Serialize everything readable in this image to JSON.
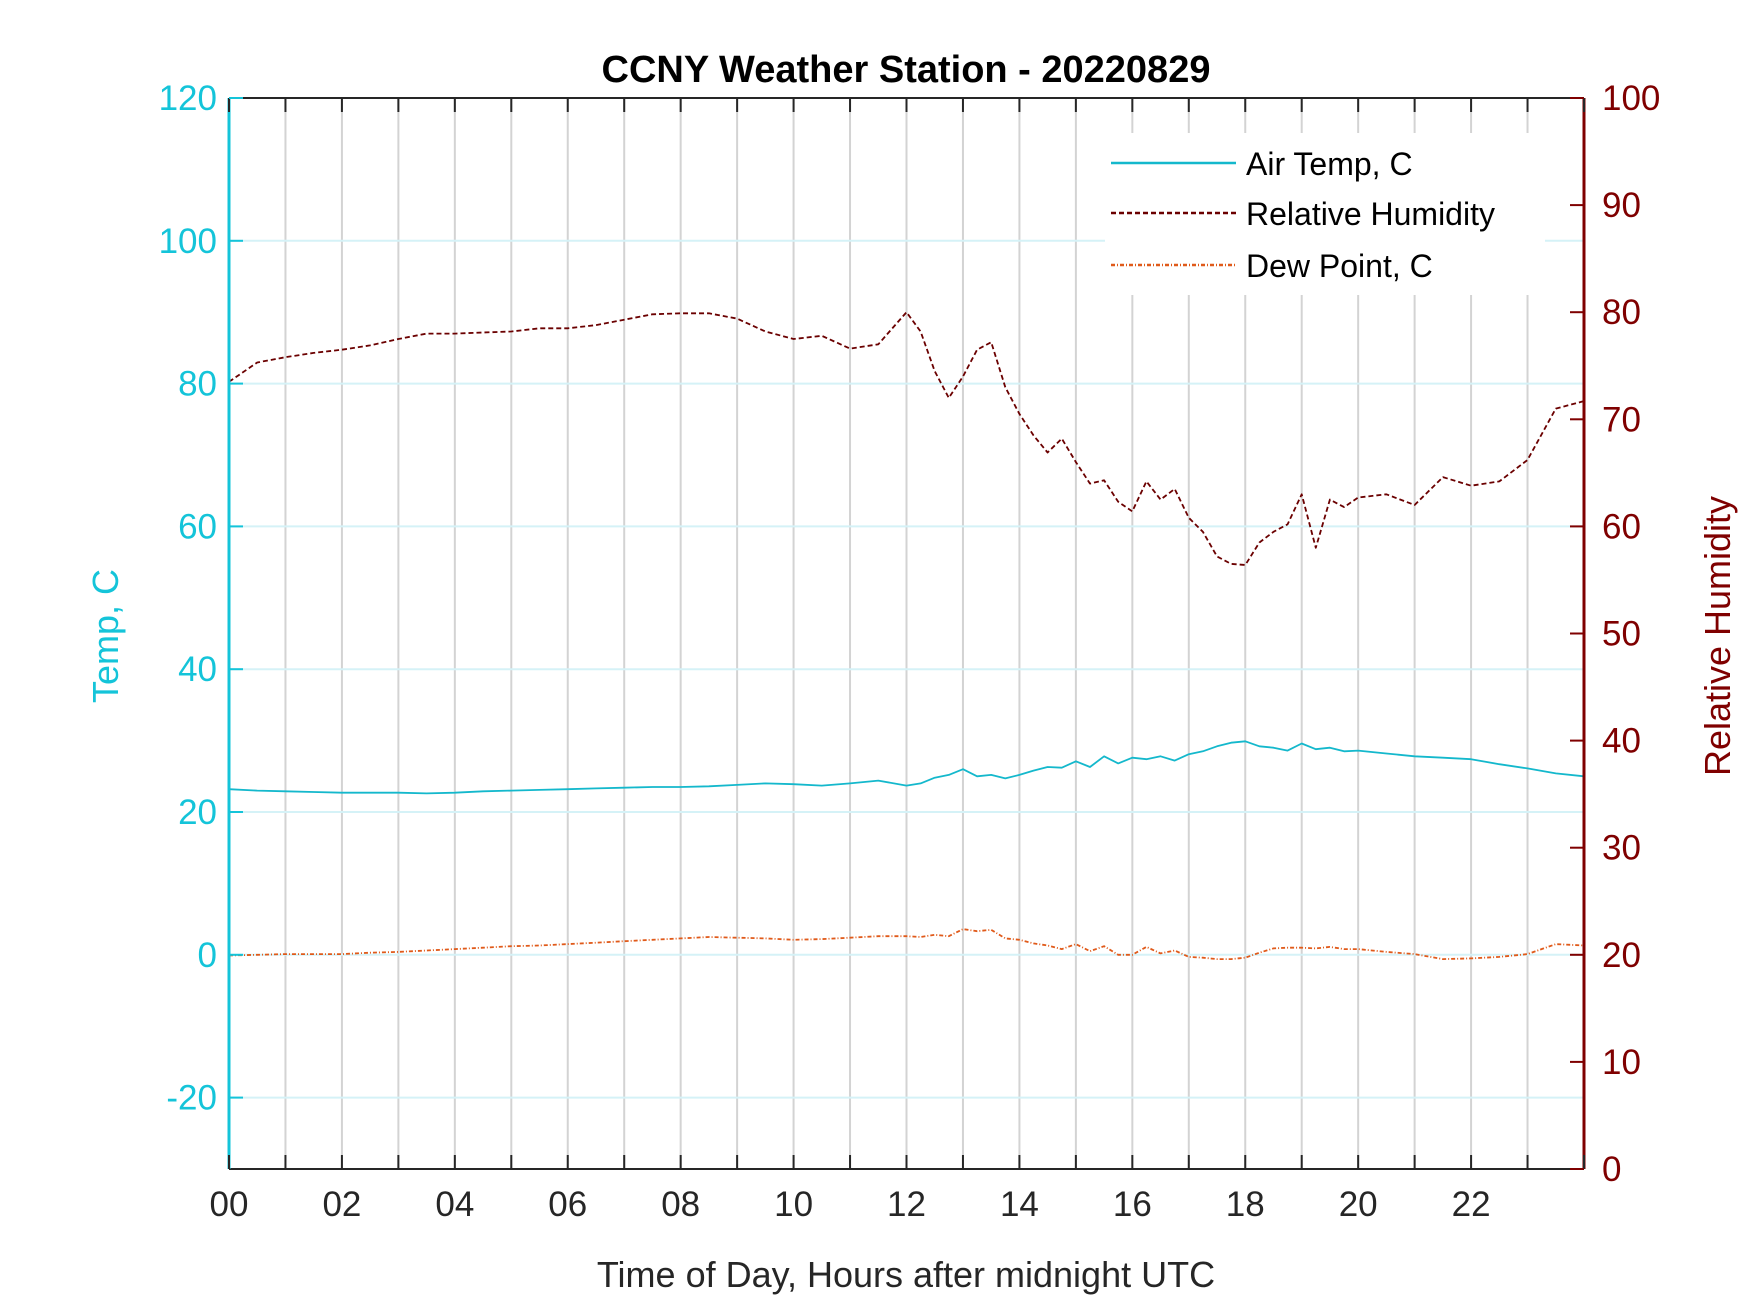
{
  "chart_data": {
    "type": "line",
    "title": "CCNY Weather Station - 20220829",
    "xlabel": "Time of Day, Hours after midnight UTC",
    "ylabel_left": "Temp, C",
    "ylabel_right": "Relative Humidity",
    "xlim": [
      0,
      24
    ],
    "ylim_left": [
      -30,
      120
    ],
    "ylim_right": [
      0,
      100
    ],
    "x_ticks": [
      0,
      2,
      4,
      6,
      8,
      10,
      12,
      14,
      16,
      18,
      20,
      22
    ],
    "x_tick_labels": [
      "00",
      "02",
      "04",
      "06",
      "08",
      "10",
      "12",
      "14",
      "16",
      "18",
      "20",
      "22"
    ],
    "y_left_ticks": [
      -20,
      0,
      20,
      40,
      60,
      80,
      100,
      120
    ],
    "y_left_tick_labels": [
      "-20",
      "0",
      "20",
      "40",
      "60",
      "80",
      "100",
      "120"
    ],
    "y_right_ticks": [
      0,
      10,
      20,
      30,
      40,
      50,
      60,
      70,
      80,
      90,
      100
    ],
    "y_right_tick_labels": [
      "0",
      "10",
      "20",
      "30",
      "40",
      "50",
      "60",
      "70",
      "80",
      "90",
      "100"
    ],
    "grid": {
      "vertical_hourly": true,
      "horizontal_left": true
    },
    "legend_position": "top-right",
    "colors": {
      "left_axis": "#14c4d9",
      "right_axis": "#7f0000",
      "air_temp": "#14b8cc",
      "rh": "#6b0000",
      "dew_point": "#e05a1a",
      "vgrid": "#d3d3d3",
      "hgrid": "#d5f2f7"
    },
    "series": [
      {
        "name": "Air Temp, C",
        "axis": "left",
        "style": "solid",
        "x": [
          0,
          0.5,
          1,
          1.5,
          2,
          2.5,
          3,
          3.5,
          4,
          4.5,
          5,
          5.5,
          6,
          6.5,
          7,
          7.5,
          8,
          8.5,
          9,
          9.5,
          10,
          10.5,
          11,
          11.5,
          12,
          12.25,
          12.5,
          12.75,
          13,
          13.25,
          13.5,
          13.75,
          14,
          14.25,
          14.5,
          14.75,
          15,
          15.25,
          15.5,
          15.75,
          16,
          16.25,
          16.5,
          16.75,
          17,
          17.25,
          17.5,
          17.75,
          18,
          18.25,
          18.5,
          18.75,
          19,
          19.25,
          19.5,
          19.75,
          20,
          20.5,
          21,
          21.5,
          22,
          22.5,
          23,
          23.5,
          24
        ],
        "y": [
          23.2,
          23.0,
          22.9,
          22.8,
          22.7,
          22.7,
          22.7,
          22.6,
          22.7,
          22.9,
          23.0,
          23.1,
          23.2,
          23.3,
          23.4,
          23.5,
          23.5,
          23.6,
          23.8,
          24.0,
          23.9,
          23.7,
          24.0,
          24.4,
          23.7,
          24.0,
          24.8,
          25.2,
          26.0,
          25.0,
          25.2,
          24.7,
          25.2,
          25.8,
          26.3,
          26.2,
          27.1,
          26.3,
          27.8,
          26.8,
          27.6,
          27.4,
          27.8,
          27.2,
          28.1,
          28.5,
          29.2,
          29.7,
          29.9,
          29.2,
          29.0,
          28.6,
          29.6,
          28.8,
          29.0,
          28.5,
          28.6,
          28.2,
          27.8,
          27.6,
          27.4,
          26.7,
          26.1,
          25.4,
          25.0
        ]
      },
      {
        "name": "Relative Humidity",
        "axis": "right",
        "style": "dashed",
        "x": [
          0,
          0.5,
          1,
          1.5,
          2,
          2.5,
          3,
          3.5,
          4,
          4.5,
          5,
          5.5,
          6,
          6.5,
          7,
          7.5,
          8,
          8.5,
          9,
          9.5,
          10,
          10.5,
          11,
          11.5,
          12,
          12.25,
          12.5,
          12.75,
          13,
          13.25,
          13.5,
          13.75,
          14,
          14.25,
          14.5,
          14.75,
          15,
          15.25,
          15.5,
          15.75,
          16,
          16.25,
          16.5,
          16.75,
          17,
          17.25,
          17.5,
          17.75,
          18,
          18.25,
          18.5,
          18.75,
          19,
          19.25,
          19.5,
          19.75,
          20,
          20.5,
          21,
          21.5,
          22,
          22.5,
          23,
          23.5,
          24
        ],
        "y": [
          73.5,
          75.3,
          75.8,
          76.2,
          76.5,
          76.9,
          77.5,
          78.0,
          78.0,
          78.1,
          78.2,
          78.5,
          78.5,
          78.8,
          79.3,
          79.8,
          79.9,
          79.9,
          79.4,
          78.2,
          77.5,
          77.8,
          76.6,
          77.0,
          80.0,
          78.2,
          74.5,
          72.0,
          74.0,
          76.5,
          77.2,
          73.0,
          70.5,
          68.5,
          66.9,
          68.2,
          66.0,
          64.0,
          64.3,
          62.3,
          61.4,
          64.2,
          62.5,
          63.5,
          60.8,
          59.5,
          57.2,
          56.5,
          56.4,
          58.5,
          59.5,
          60.2,
          63.0,
          58.0,
          62.5,
          61.8,
          62.7,
          63.0,
          62.0,
          64.6,
          63.8,
          64.2,
          66.2,
          71.0,
          71.7
        ]
      },
      {
        "name": "Dew Point, C",
        "axis": "left",
        "style": "dash-dot",
        "x": [
          0,
          0.5,
          1,
          1.5,
          2,
          2.5,
          3,
          3.5,
          4,
          4.5,
          5,
          5.5,
          6,
          6.5,
          7,
          7.5,
          8,
          8.5,
          9,
          9.5,
          10,
          10.5,
          11,
          11.5,
          12,
          12.25,
          12.5,
          12.75,
          13,
          13.25,
          13.5,
          13.75,
          14,
          14.25,
          14.5,
          14.75,
          15,
          15.25,
          15.5,
          15.75,
          16,
          16.25,
          16.5,
          16.75,
          17,
          17.25,
          17.5,
          17.75,
          18,
          18.25,
          18.5,
          18.75,
          19,
          19.25,
          19.5,
          19.75,
          20,
          20.5,
          21,
          21.5,
          22,
          22.5,
          23,
          23.5,
          24
        ],
        "y": [
          -0.1,
          0.0,
          0.1,
          0.1,
          0.1,
          0.3,
          0.4,
          0.6,
          0.8,
          1.0,
          1.2,
          1.3,
          1.5,
          1.7,
          1.9,
          2.1,
          2.3,
          2.5,
          2.4,
          2.3,
          2.1,
          2.2,
          2.4,
          2.6,
          2.6,
          2.5,
          2.8,
          2.6,
          3.6,
          3.3,
          3.5,
          2.3,
          2.1,
          1.6,
          1.3,
          0.8,
          1.5,
          0.5,
          1.2,
          0.0,
          0.0,
          1.1,
          0.2,
          0.6,
          -0.3,
          -0.4,
          -0.6,
          -0.6,
          -0.4,
          0.3,
          0.9,
          1.0,
          1.0,
          0.9,
          1.1,
          0.8,
          0.8,
          0.4,
          0.1,
          -0.6,
          -0.5,
          -0.3,
          0.1,
          1.5,
          1.3
        ]
      }
    ]
  }
}
